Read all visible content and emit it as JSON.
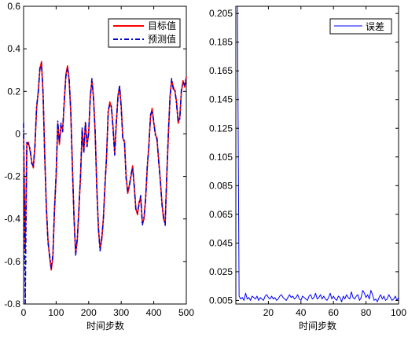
{
  "chart_data": [
    {
      "type": "line",
      "xlabel": "时间步数",
      "ylabel": "",
      "xlim": [
        0,
        500
      ],
      "ylim": [
        -0.8,
        0.6
      ],
      "xticks": [
        0,
        100,
        200,
        300,
        400,
        500
      ],
      "yticks": [
        -0.8,
        -0.6,
        -0.4,
        -0.2,
        0,
        0.2,
        0.4,
        0.6
      ],
      "ytick_labels": [
        "-0.8",
        "-0.6",
        "-0.4",
        "-0.2",
        "0",
        "0.2",
        "0.4",
        "0.6"
      ],
      "grid": false,
      "legend_position": "top-right",
      "series": [
        {
          "name": "目标值",
          "color": "#ff0000",
          "style": "solid",
          "x": [
            0,
            5,
            10,
            15,
            20,
            25,
            30,
            35,
            40,
            45,
            50,
            55,
            60,
            65,
            70,
            75,
            80,
            85,
            90,
            95,
            100,
            105,
            110,
            115,
            120,
            125,
            130,
            135,
            140,
            145,
            150,
            155,
            160,
            165,
            170,
            175,
            180,
            185,
            190,
            195,
            200,
            205,
            210,
            215,
            220,
            225,
            230,
            235,
            240,
            245,
            250,
            255,
            260,
            265,
            270,
            275,
            280,
            285,
            290,
            295,
            300,
            305,
            310,
            315,
            320,
            325,
            330,
            335,
            340,
            345,
            350,
            355,
            360,
            365,
            370,
            375,
            380,
            385,
            390,
            395,
            400,
            405,
            410,
            415,
            420,
            425,
            430,
            435,
            440,
            445,
            450,
            455,
            460,
            465,
            470,
            475,
            480,
            485,
            490,
            495,
            500
          ],
          "y": [
            0.0,
            -0.55,
            -0.05,
            -0.04,
            -0.08,
            -0.13,
            -0.16,
            -0.05,
            0.12,
            0.2,
            0.3,
            0.34,
            0.18,
            -0.1,
            -0.35,
            -0.5,
            -0.58,
            -0.64,
            -0.58,
            -0.35,
            -0.2,
            0.05,
            -0.05,
            0.04,
            0.02,
            0.15,
            0.28,
            0.32,
            0.25,
            0.1,
            -0.15,
            -0.4,
            -0.56,
            -0.5,
            -0.35,
            -0.2,
            0.02,
            -0.08,
            0.05,
            -0.05,
            0.0,
            0.18,
            0.25,
            0.17,
            0.0,
            -0.25,
            -0.45,
            -0.54,
            -0.5,
            -0.4,
            -0.25,
            -0.1,
            0.1,
            0.15,
            0.12,
            0.03,
            -0.09,
            0.05,
            0.18,
            0.22,
            0.13,
            -0.02,
            -0.04,
            -0.2,
            -0.28,
            -0.24,
            -0.2,
            -0.15,
            -0.25,
            -0.35,
            -0.38,
            -0.32,
            -0.3,
            -0.42,
            -0.4,
            -0.3,
            -0.16,
            -0.05,
            0.08,
            0.12,
            0.05,
            0.0,
            -0.03,
            -0.12,
            -0.22,
            -0.32,
            -0.4,
            -0.42,
            -0.2,
            0.0,
            0.18,
            0.25,
            0.22,
            0.2,
            0.15,
            0.05,
            0.08,
            0.2,
            0.25,
            0.22,
            0.27
          ]
        },
        {
          "name": "预测值",
          "color": "#0000cc",
          "style": "dashdot",
          "x": [
            0,
            5,
            10,
            15,
            20,
            25,
            30,
            35,
            40,
            45,
            50,
            55,
            60,
            65,
            70,
            75,
            80,
            85,
            90,
            95,
            100,
            105,
            110,
            115,
            120,
            125,
            130,
            135,
            140,
            145,
            150,
            155,
            160,
            165,
            170,
            175,
            180,
            185,
            190,
            195,
            200,
            205,
            210,
            215,
            220,
            225,
            230,
            235,
            240,
            245,
            250,
            255,
            260,
            265,
            270,
            275,
            280,
            285,
            290,
            295,
            300,
            305,
            310,
            315,
            320,
            325,
            330,
            335,
            340,
            345,
            350,
            355,
            360,
            365,
            370,
            375,
            380,
            385,
            390,
            395,
            400,
            405,
            410,
            415,
            420,
            425,
            430,
            435,
            440,
            445,
            450,
            455,
            460,
            465,
            470,
            475,
            480,
            485,
            490,
            495,
            500
          ],
          "y": [
            0.05,
            -0.8,
            -0.04,
            -0.05,
            -0.07,
            -0.14,
            -0.15,
            -0.06,
            0.13,
            0.19,
            0.31,
            0.33,
            0.19,
            -0.11,
            -0.34,
            -0.51,
            -0.57,
            -0.63,
            -0.57,
            -0.36,
            -0.19,
            0.06,
            -0.04,
            0.05,
            0.01,
            0.16,
            0.27,
            0.31,
            0.26,
            0.11,
            -0.16,
            -0.39,
            -0.57,
            -0.49,
            -0.36,
            -0.19,
            0.03,
            -0.09,
            0.06,
            -0.06,
            0.01,
            0.17,
            0.26,
            0.16,
            0.01,
            -0.26,
            -0.44,
            -0.55,
            -0.49,
            -0.41,
            -0.24,
            -0.11,
            0.11,
            0.14,
            0.13,
            0.02,
            -0.1,
            0.06,
            0.17,
            0.23,
            0.12,
            -0.03,
            -0.03,
            -0.21,
            -0.27,
            -0.25,
            -0.19,
            -0.16,
            -0.24,
            -0.36,
            -0.37,
            -0.33,
            -0.29,
            -0.43,
            -0.39,
            -0.31,
            -0.15,
            -0.06,
            0.09,
            0.11,
            0.06,
            -0.01,
            -0.02,
            -0.13,
            -0.21,
            -0.33,
            -0.39,
            -0.43,
            -0.19,
            0.01,
            0.17,
            0.26,
            0.21,
            0.21,
            0.14,
            0.06,
            0.07,
            0.21,
            0.24,
            0.23,
            0.26
          ]
        }
      ]
    },
    {
      "type": "line",
      "xlabel": "时间步数",
      "ylabel": "",
      "xlim": [
        0,
        100
      ],
      "ylim": [
        0.0025,
        0.21
      ],
      "xticks": [
        20,
        40,
        60,
        80,
        100
      ],
      "yticks": [
        0.005,
        0.025,
        0.045,
        0.065,
        0.085,
        0.105,
        0.125,
        0.145,
        0.165,
        0.185,
        0.205
      ],
      "ytick_labels": [
        "0.005",
        "0.025",
        "0.045",
        "0.065",
        "0.085",
        "0.105",
        "0.125",
        "0.145",
        "0.165",
        "0.185",
        "0.205"
      ],
      "grid": false,
      "legend_position": "top-right",
      "series": [
        {
          "name": "误差",
          "color": "#0000ff",
          "style": "solid",
          "x": [
            1,
            2,
            3,
            4,
            5,
            6,
            7,
            8,
            9,
            10,
            11,
            12,
            13,
            14,
            15,
            16,
            17,
            18,
            19,
            20,
            21,
            22,
            23,
            24,
            25,
            26,
            27,
            28,
            29,
            30,
            31,
            32,
            33,
            34,
            35,
            36,
            37,
            38,
            39,
            40,
            41,
            42,
            43,
            44,
            45,
            46,
            47,
            48,
            49,
            50,
            51,
            52,
            53,
            54,
            55,
            56,
            57,
            58,
            59,
            60,
            61,
            62,
            63,
            64,
            65,
            66,
            67,
            68,
            69,
            70,
            71,
            72,
            73,
            74,
            75,
            76,
            77,
            78,
            79,
            80,
            81,
            82,
            83,
            84,
            85,
            86,
            87,
            88,
            89,
            90,
            91,
            92,
            93,
            94,
            95,
            96,
            97,
            98,
            99,
            100
          ],
          "y": [
            0.21,
            0.008,
            0.006,
            0.007,
            0.005,
            0.01,
            0.006,
            0.007,
            0.005,
            0.008,
            0.007,
            0.006,
            0.008,
            0.005,
            0.007,
            0.006,
            0.005,
            0.008,
            0.009,
            0.007,
            0.006,
            0.008,
            0.006,
            0.007,
            0.005,
            0.006,
            0.008,
            0.009,
            0.007,
            0.006,
            0.005,
            0.007,
            0.009,
            0.007,
            0.008,
            0.006,
            0.007,
            0.009,
            0.006,
            0.005,
            0.008,
            0.007,
            0.006,
            0.005,
            0.008,
            0.009,
            0.006,
            0.007,
            0.01,
            0.006,
            0.007,
            0.009,
            0.006,
            0.008,
            0.006,
            0.005,
            0.007,
            0.01,
            0.006,
            0.008,
            0.006,
            0.005,
            0.008,
            0.007,
            0.004,
            0.008,
            0.006,
            0.009,
            0.007,
            0.006,
            0.011,
            0.007,
            0.006,
            0.008,
            0.009,
            0.005,
            0.007,
            0.012,
            0.01,
            0.007,
            0.009,
            0.006,
            0.012,
            0.009,
            0.005,
            0.006,
            0.004,
            0.007,
            0.009,
            0.006,
            0.008,
            0.005,
            0.006,
            0.009,
            0.007,
            0.005,
            0.006,
            0.008,
            0.005,
            0.007
          ]
        }
      ]
    }
  ]
}
